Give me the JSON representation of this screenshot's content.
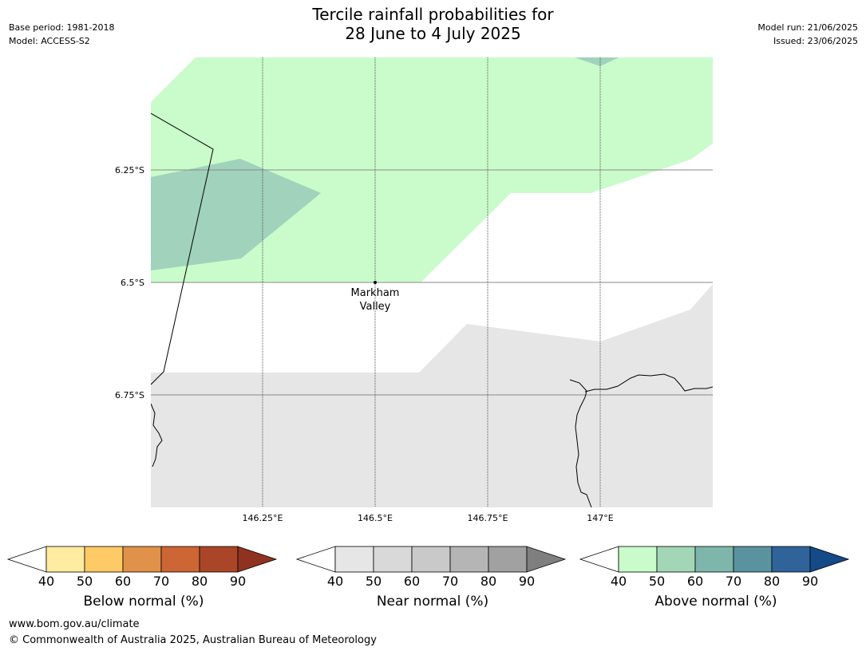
{
  "header": {
    "title_line1": "Tercile rainfall probabilities for",
    "title_line2": "28 June to 4 July 2025",
    "base_period": "Base period: 1981-2018",
    "model": "Model: ACCESS-S2",
    "model_run": "Model run: 21/06/2025",
    "issued": "Issued: 23/06/2025"
  },
  "map": {
    "lat_labels": [
      "6.25°S",
      "6.5°S",
      "6.75°S"
    ],
    "lon_labels": [
      "146.25°E",
      "146.5°E",
      "146.75°E",
      "147°E"
    ],
    "place": {
      "name_line1": "Markham",
      "name_line2": "Valley",
      "lat": -6.5,
      "lon": 146.5
    },
    "fill_colors": {
      "above_40_50": "#c9fcca",
      "above_50_60": "#a0d2bc",
      "near_40_50": "#e6e6e6"
    }
  },
  "colorbars": [
    {
      "label": "Below normal (%)",
      "ticks": [
        "40",
        "50",
        "60",
        "70",
        "80",
        "90"
      ],
      "colors": [
        "#ffffff",
        "#ffeca0",
        "#fdca65",
        "#e1924a",
        "#cc6634",
        "#aa4628",
        "#8f3320"
      ]
    },
    {
      "label": "Near normal (%)",
      "ticks": [
        "40",
        "50",
        "60",
        "70",
        "80",
        "90"
      ],
      "colors": [
        "#ffffff",
        "#e6e6e6",
        "#d9d9d9",
        "#c9c9c9",
        "#b5b5b5",
        "#a1a1a1",
        "#7f7f7f"
      ]
    },
    {
      "label": "Above normal (%)",
      "ticks": [
        "40",
        "50",
        "60",
        "70",
        "80",
        "90"
      ],
      "colors": [
        "#ffffff",
        "#c9fcca",
        "#a2d6b6",
        "#7fb6ac",
        "#5a93a0",
        "#2f6399",
        "#144a88"
      ]
    }
  ],
  "footer": {
    "url": "www.bom.gov.au/climate",
    "copyright": "© Commonwealth of Australia 2025, Australian Bureau of Meteorology"
  }
}
